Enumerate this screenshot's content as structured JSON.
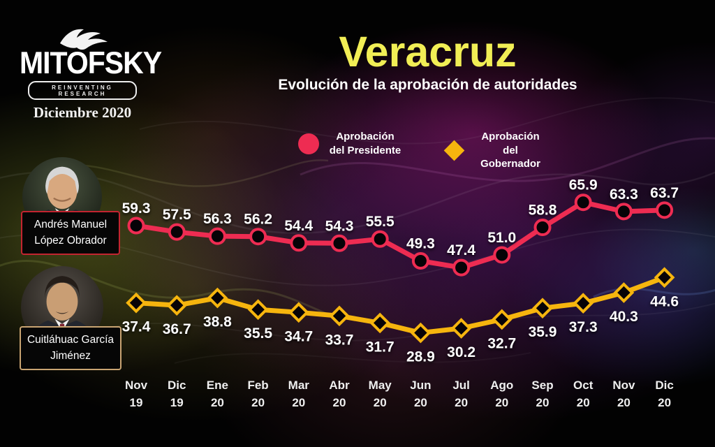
{
  "header": {
    "logo": {
      "brand": "MITOFSKY",
      "tagline": "REINVENTING RESEARCH",
      "date": "Diciembre 2020"
    },
    "title": "Veracruz",
    "subtitle": "Evolución de la aprobación de autoridades"
  },
  "legend": {
    "items": [
      {
        "label": "Aprobación del Presidente",
        "marker": "circle"
      },
      {
        "label": "Aprobación del Gobernador",
        "marker": "diamond"
      }
    ]
  },
  "people": [
    {
      "name": "Andrés Manuel López Obrador",
      "role": "Presidente"
    },
    {
      "name": "Cuitláhuac García Jiménez",
      "role": "Gobernador"
    }
  ],
  "theme": {
    "president_color": "#ee2c52",
    "governor_color": "#f6b50e",
    "title_color": "#f1ee55",
    "president_box_border": "#c32430",
    "governor_box_border": "#c9a472"
  },
  "chart_data": {
    "type": "line",
    "title": "Veracruz — Evolución de la aprobación de autoridades",
    "categories": [
      "Nov 19",
      "Dic 19",
      "Ene 20",
      "Feb 20",
      "Mar 20",
      "Abr 20",
      "May 20",
      "Jun 20",
      "Jul 20",
      "Ago 20",
      "Sep 20",
      "Oct 20",
      "Nov 20",
      "Dic 20"
    ],
    "series": [
      {
        "name": "Aprobación del Presidente",
        "marker": "circle",
        "color": "#ee2c52",
        "label_position": "above",
        "values": [
          59.3,
          57.5,
          56.3,
          56.2,
          54.4,
          54.3,
          55.5,
          49.3,
          47.4,
          51.0,
          58.8,
          65.9,
          63.3,
          63.7
        ]
      },
      {
        "name": "Aprobación del Gobernador",
        "marker": "diamond",
        "color": "#f6b50e",
        "label_position": "below",
        "values": [
          37.4,
          36.7,
          38.8,
          35.5,
          34.7,
          33.7,
          31.7,
          28.9,
          30.2,
          32.7,
          35.9,
          37.3,
          40.3,
          44.6
        ]
      }
    ],
    "ylim": [
      25,
      70
    ],
    "grid": false,
    "legend_position": "top",
    "data_labels": true
  }
}
